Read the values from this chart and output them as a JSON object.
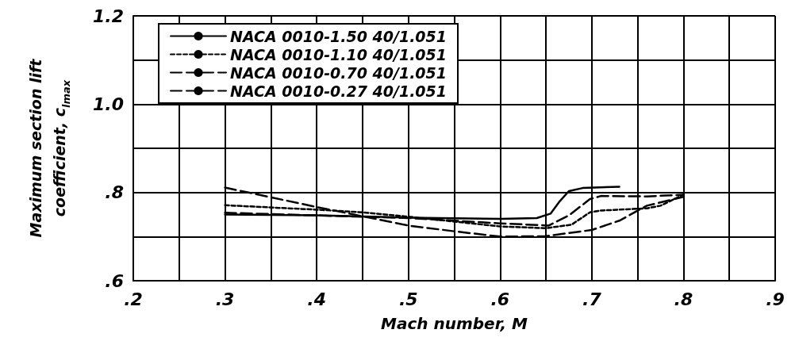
{
  "chart_data": {
    "type": "line",
    "xlabel": "Mach number, M",
    "ylabel": "Maximum section lift\ncoefficient, c$_{lmax}$",
    "xlim": [
      0.2,
      0.9
    ],
    "ylim": [
      0.6,
      1.2
    ],
    "xticks": [
      {
        "value": 0.2,
        "label": ".2"
      },
      {
        "value": 0.25,
        "label": null
      },
      {
        "value": 0.3,
        "label": ".3"
      },
      {
        "value": 0.35,
        "label": null
      },
      {
        "value": 0.4,
        "label": ".4"
      },
      {
        "value": 0.45,
        "label": null
      },
      {
        "value": 0.5,
        "label": ".5"
      },
      {
        "value": 0.55,
        "label": null
      },
      {
        "value": 0.6,
        "label": ".6"
      },
      {
        "value": 0.65,
        "label": null
      },
      {
        "value": 0.7,
        "label": ".7"
      },
      {
        "value": 0.75,
        "label": null
      },
      {
        "value": 0.8,
        "label": ".8"
      },
      {
        "value": 0.85,
        "label": null
      },
      {
        "value": 0.9,
        "label": ".9"
      }
    ],
    "yticks": [
      {
        "value": 0.6,
        "label": ".6"
      },
      {
        "value": 0.7,
        "label": null
      },
      {
        "value": 0.8,
        "label": ".8"
      },
      {
        "value": 0.9,
        "label": null
      },
      {
        "value": 1.0,
        "label": "1.0"
      },
      {
        "value": 1.1,
        "label": null
      },
      {
        "value": 1.2,
        "label": "1.2"
      }
    ],
    "grid": true,
    "legend": "top left",
    "marker": "none",
    "series": [
      {
        "name": "NACA 0010-1.50 40/1.051",
        "color": "#000000",
        "line_style": "solid",
        "x": [
          0.3,
          0.4,
          0.5,
          0.6,
          0.64,
          0.655,
          0.665,
          0.675,
          0.69,
          0.73
        ],
        "values": [
          0.75,
          0.748,
          0.743,
          0.74,
          0.742,
          0.752,
          0.78,
          0.803,
          0.81,
          0.813
        ]
      },
      {
        "name": "NACA 0010-1.10 40/1.051",
        "color": "#000000",
        "line_style": "dotted",
        "x": [
          0.3,
          0.4,
          0.45,
          0.5,
          0.6,
          0.65,
          0.678,
          0.698,
          0.71,
          0.76,
          0.775,
          0.8
        ],
        "values": [
          0.771,
          0.761,
          0.755,
          0.745,
          0.723,
          0.719,
          0.727,
          0.755,
          0.759,
          0.764,
          0.77,
          0.795
        ]
      },
      {
        "name": "NACA 0010-0.70 40/1.051",
        "color": "#000000",
        "line_style": "dashed",
        "x": [
          0.3,
          0.4,
          0.5,
          0.6,
          0.653,
          0.675,
          0.698,
          0.71,
          0.76,
          0.8
        ],
        "values": [
          0.754,
          0.748,
          0.742,
          0.73,
          0.725,
          0.748,
          0.785,
          0.792,
          0.791,
          0.795
        ]
      },
      {
        "name": "NACA 0010-0.27 40/1.051",
        "color": "#000000",
        "line_style": "dashed",
        "x": [
          0.3,
          0.35,
          0.4,
          0.45,
          0.5,
          0.55,
          0.6,
          0.65,
          0.7,
          0.73,
          0.76,
          0.8
        ],
        "values": [
          0.811,
          0.789,
          0.767,
          0.746,
          0.725,
          0.712,
          0.7,
          0.701,
          0.715,
          0.736,
          0.77,
          0.79
        ]
      }
    ]
  }
}
